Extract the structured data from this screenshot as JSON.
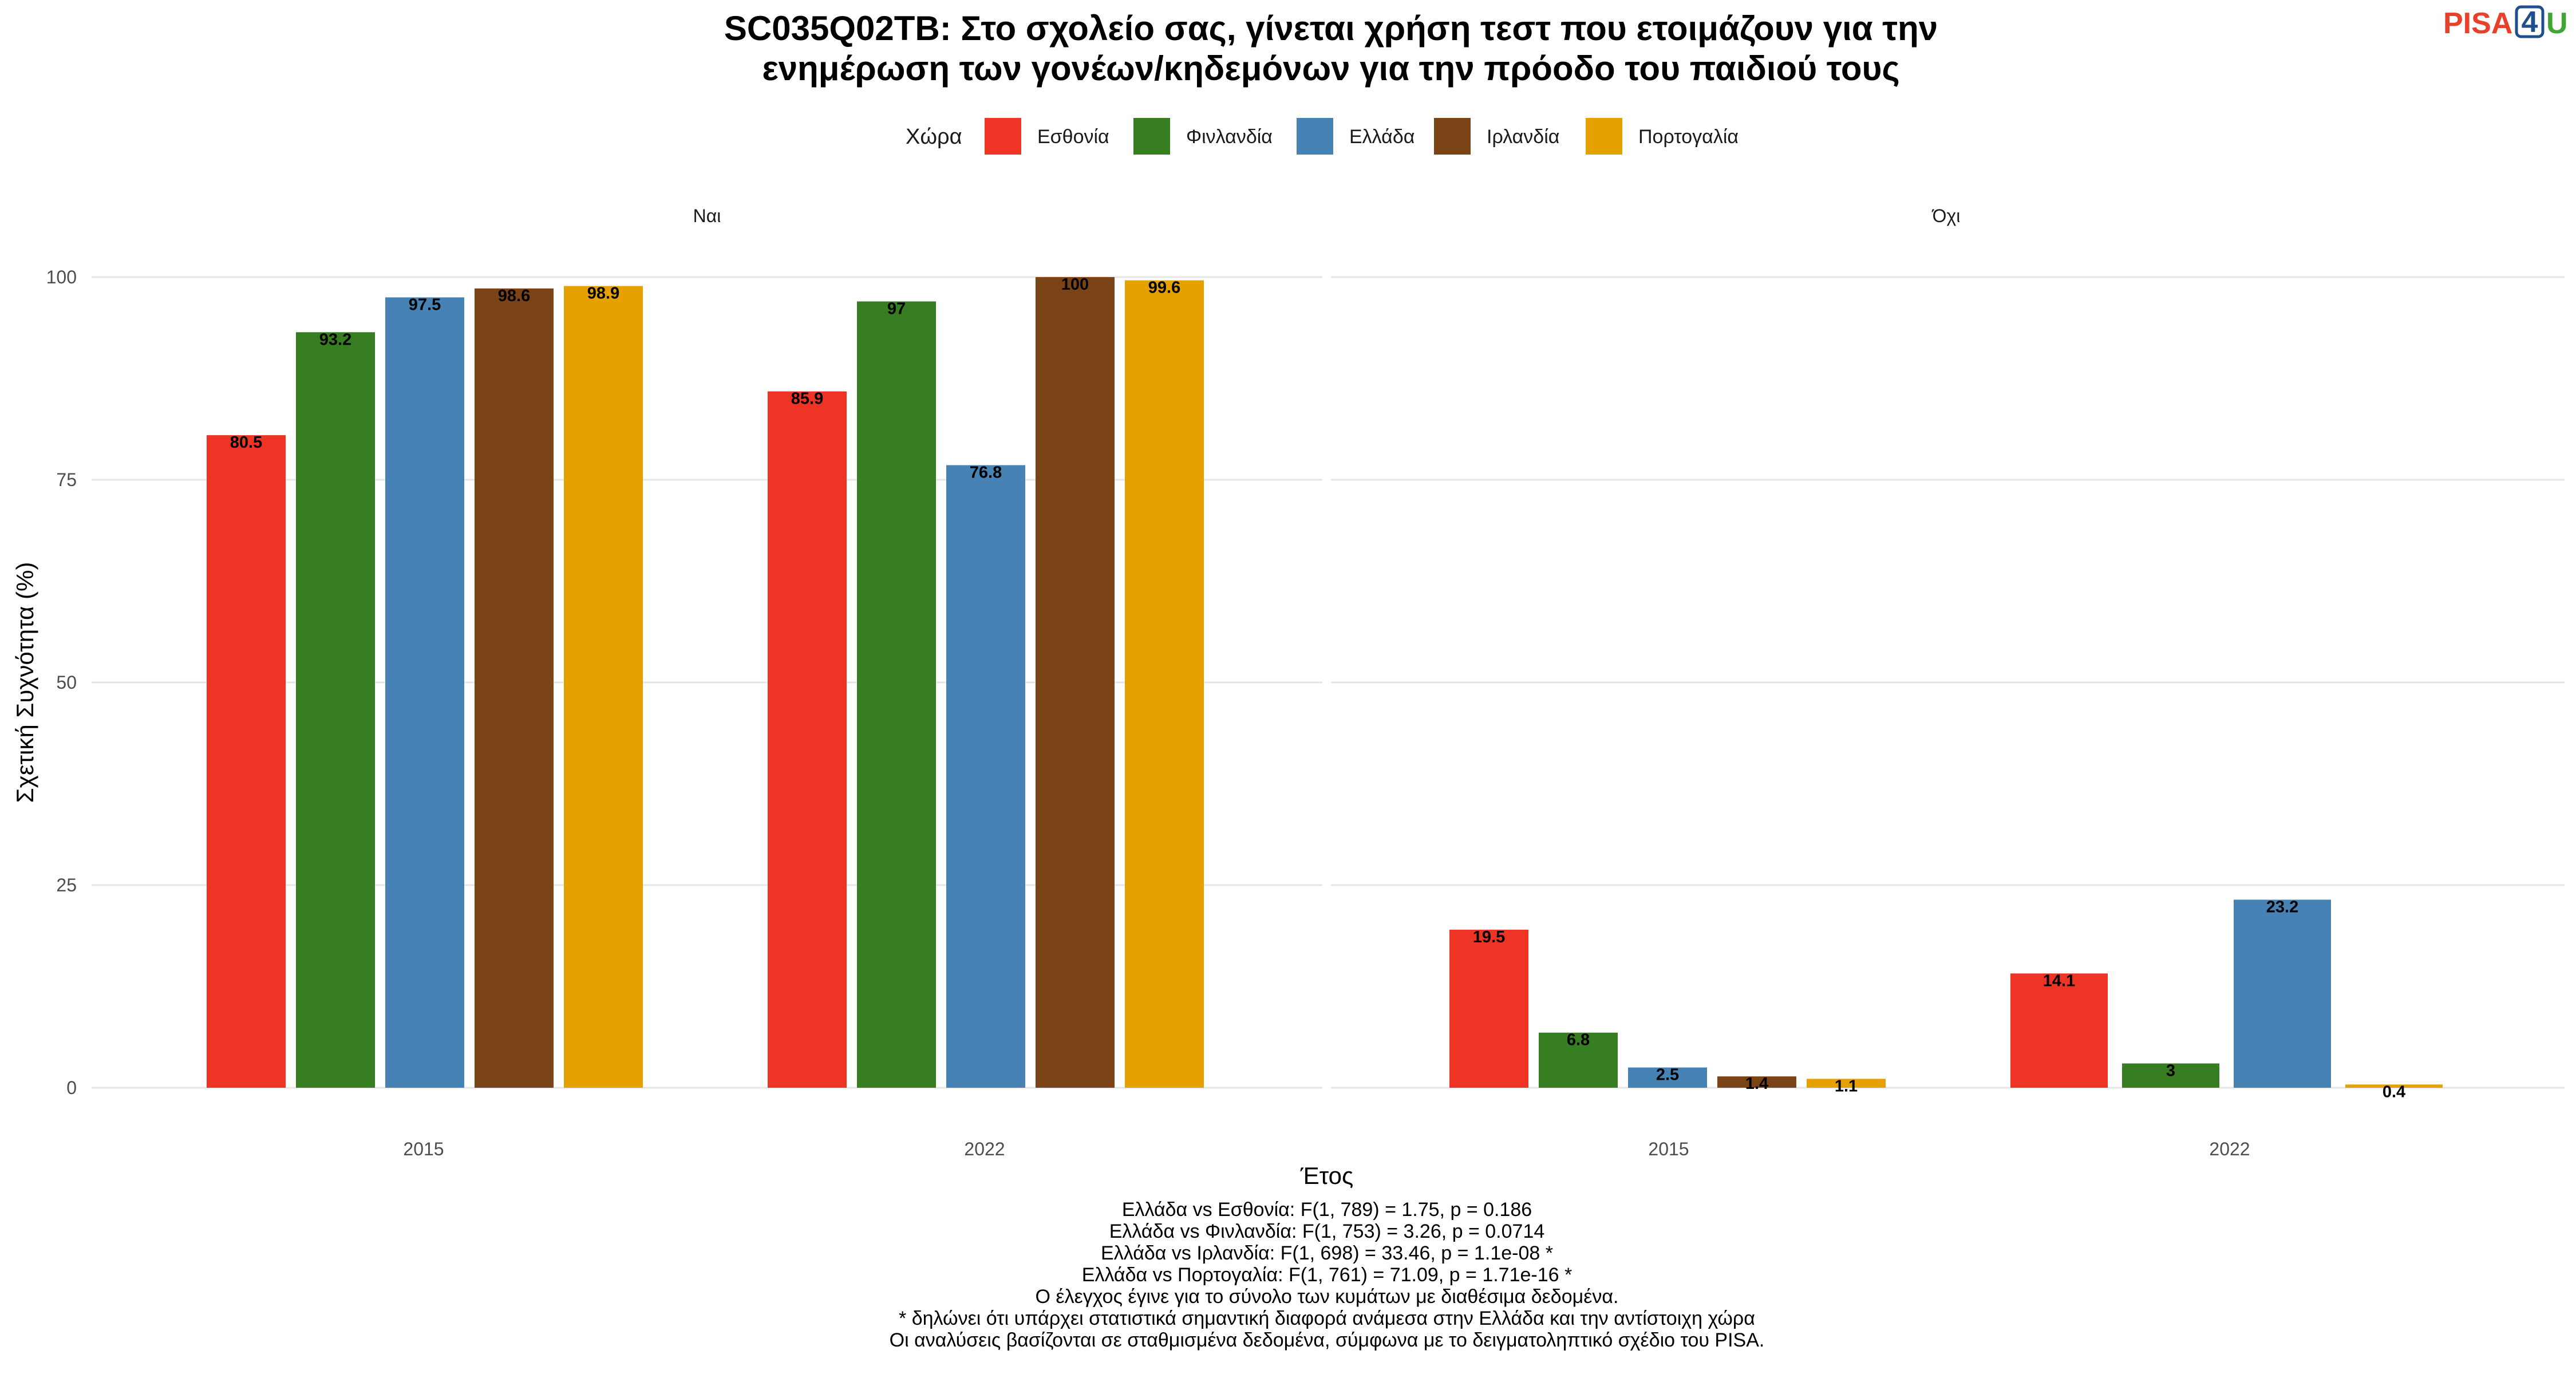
{
  "logo": {
    "part1": "PISA",
    "part2": "4",
    "part3": "U",
    "color1": "#e8402a",
    "color2": "#1f4e8c",
    "color3": "#3fa535"
  },
  "chart_data": {
    "type": "bar",
    "title_lines": [
      "SC035Q02TB: Στο σχολείο σας, γίνεται χρήση τεστ που ετοιμάζουν για την",
      "ενημέρωση των γονέων/κηδεμόνων για την πρόοδο του παιδιού τους"
    ],
    "legend": {
      "title": "Χώρα",
      "position": "top",
      "entries": [
        {
          "name": "Εσθονία",
          "color": "#ee3424"
        },
        {
          "name": "Φινλανδία",
          "color": "#377e22"
        },
        {
          "name": "Ελλάδα",
          "color": "#4682b4"
        },
        {
          "name": "Ιρλανδία",
          "color": "#7b4416"
        },
        {
          "name": "Πορτογαλία",
          "color": "#e6a000"
        }
      ]
    },
    "xlabel": "Έτος",
    "ylabel": "Σχετική Συχνότητα (%)",
    "ylim": [
      0,
      100
    ],
    "yticks": [
      0,
      25,
      50,
      75,
      100
    ],
    "grid": true,
    "categories": [
      "2015",
      "2022"
    ],
    "panels": [
      {
        "label": "Ναι",
        "series": [
          {
            "name": "Εσθονία",
            "values": [
              80.5,
              85.9
            ],
            "labels": [
              "80.5",
              "85.9"
            ]
          },
          {
            "name": "Φινλανδία",
            "values": [
              93.2,
              97
            ],
            "labels": [
              "93.2",
              "97"
            ]
          },
          {
            "name": "Ελλάδα",
            "values": [
              97.5,
              76.8
            ],
            "labels": [
              "97.5",
              "76.8"
            ]
          },
          {
            "name": "Ιρλανδία",
            "values": [
              98.6,
              100
            ],
            "labels": [
              "98.6",
              "100"
            ]
          },
          {
            "name": "Πορτογαλία",
            "values": [
              98.9,
              99.6
            ],
            "labels": [
              "98.9",
              "99.6"
            ]
          }
        ]
      },
      {
        "label": "Όχι",
        "series": [
          {
            "name": "Εσθονία",
            "values": [
              19.5,
              14.1
            ],
            "labels": [
              "19.5",
              "14.1"
            ]
          },
          {
            "name": "Φινλανδία",
            "values": [
              6.8,
              3
            ],
            "labels": [
              "6.8",
              "3"
            ]
          },
          {
            "name": "Ελλάδα",
            "values": [
              2.5,
              23.2
            ],
            "labels": [
              "2.5",
              "23.2"
            ]
          },
          {
            "name": "Ιρλανδία",
            "values": [
              1.4,
              null
            ],
            "labels": [
              "1.4",
              null
            ]
          },
          {
            "name": "Πορτογαλία",
            "values": [
              1.1,
              0.4
            ],
            "labels": [
              "1.1",
              "0.4"
            ]
          }
        ]
      }
    ],
    "footnotes": [
      "Ελλάδα vs Εσθονία: F(1, 789) = 1.75, p = 0.186",
      "Ελλάδα vs Φινλανδία: F(1, 753) = 3.26, p = 0.0714",
      "Ελλάδα vs Ιρλανδία: F(1, 698) = 33.46, p = 1.1e-08 *",
      "Ελλάδα vs Πορτογαλία: F(1, 761) = 71.09, p = 1.71e-16 *",
      "Ο έλεγχος έγινε για το σύνολο των κυμάτων με διαθέσιμα δεδομένα.",
      "* δηλώνει ότι υπάρχει στατιστικά σημαντική διαφορά ανάμεσα στην Ελλάδα και την αντίστοιχη χώρα",
      "Οι αναλύσεις βασίζονται σε σταθμισμένα δεδομένα, σύμφωνα με το δειγματοληπτικό σχέδιο του PISA."
    ]
  }
}
